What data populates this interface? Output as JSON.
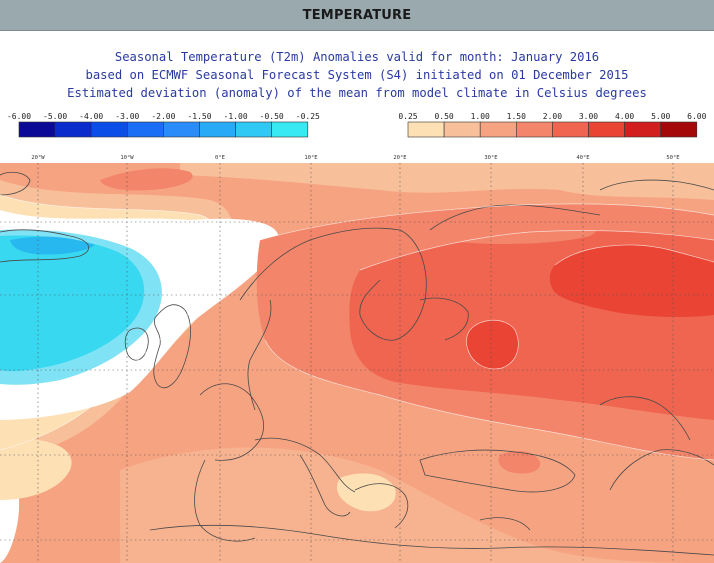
{
  "header": {
    "title": "TEMPERATURE"
  },
  "map": {
    "title_lines": [
      "Seasonal Temperature (T2m) Anomalies valid for month: January 2016",
      "based on ECMWF Seasonal Forecast System (S4) initiated on 01 December 2015",
      "Estimated deviation (anomaly) of the mean from model climate in Celsius degrees"
    ],
    "negative_scale": {
      "labels": [
        "-6.00",
        "-5.00",
        "-4.00",
        "-3.00",
        "-2.00",
        "-1.50",
        "-1.00",
        "-0.50",
        "-0.25"
      ],
      "colors": [
        "#0a0a96",
        "#0a2ccd",
        "#0a4ee8",
        "#1a6ef5",
        "#2a8cf8",
        "#28aaf7",
        "#30c8f5",
        "#38e8f3"
      ]
    },
    "positive_scale": {
      "labels": [
        "0.25",
        "0.50",
        "1.00",
        "1.50",
        "2.00",
        "3.00",
        "4.00",
        "5.00",
        "6.00"
      ],
      "colors": [
        "#fde0b4",
        "#f8c09a",
        "#f6a382",
        "#f3856a",
        "#ef6550",
        "#e94434",
        "#d11f1f",
        "#a40808"
      ]
    },
    "grid_labels": [
      "20°W",
      "10°W",
      "0°E",
      "10°E",
      "20°E",
      "30°E",
      "40°E",
      "50°E"
    ]
  }
}
